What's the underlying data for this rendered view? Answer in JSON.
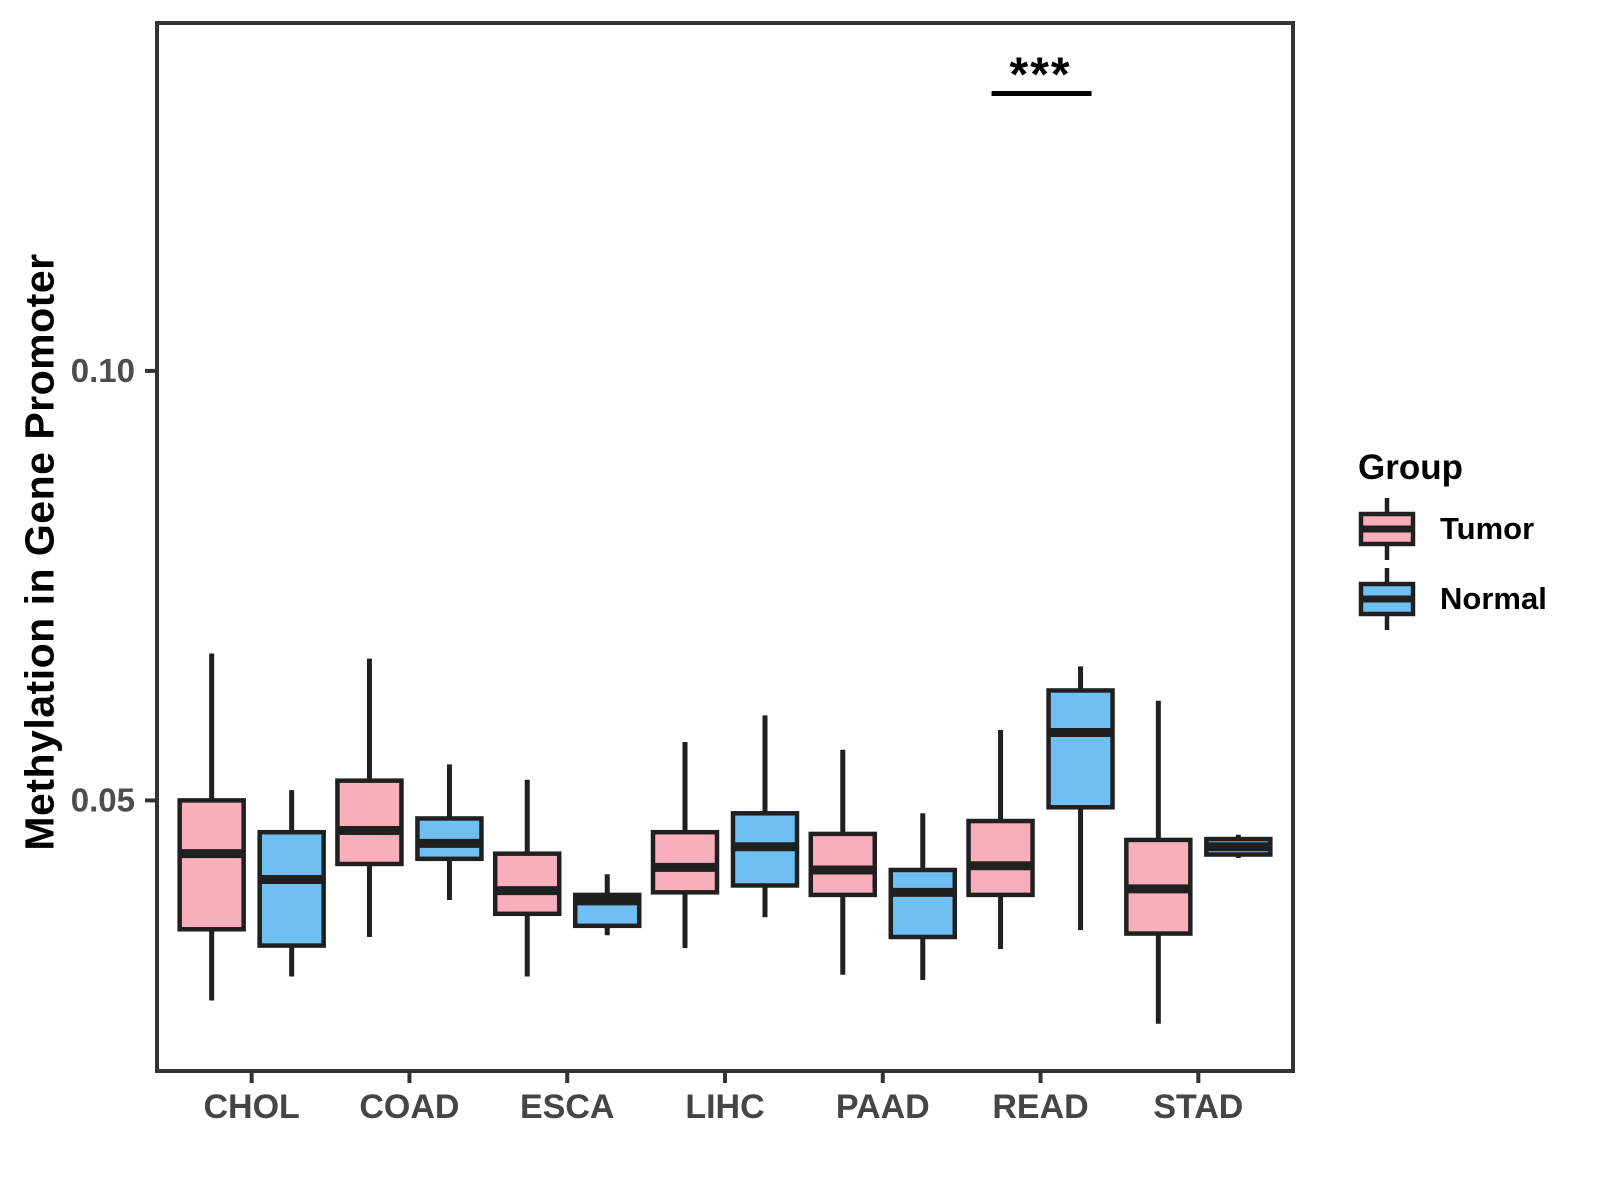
{
  "figure": {
    "y_axis_title": "Methylation in Gene Promoter",
    "legend": {
      "title": "Group",
      "entries": [
        {
          "label": "Tumor",
          "fill": "#F9AEBC"
        },
        {
          "label": "Normal",
          "fill": "#6FBFF2"
        }
      ]
    },
    "significance_label": "***"
  },
  "chart_data": {
    "type": "boxplot",
    "title": "",
    "xlabel": "",
    "ylabel": "Methylation in Gene Promoter",
    "categories": [
      "CHOL",
      "COAD",
      "ESCA",
      "LIHC",
      "PAAD",
      "READ",
      "STAD"
    ],
    "y_ticks": [
      {
        "value": 0.05,
        "label": "0.05"
      },
      {
        "value": 0.1,
        "label": "0.10"
      }
    ],
    "ylim": [
      0.0185,
      0.1405
    ],
    "grid": false,
    "legend_position": "right",
    "series": [
      {
        "name": "Tumor",
        "fill": "#F9AEBC",
        "boxes": [
          {
            "category": "CHOL",
            "low": 0.0267,
            "q1": 0.035,
            "median": 0.0438,
            "q3": 0.05,
            "high": 0.0671
          },
          {
            "category": "COAD",
            "low": 0.0341,
            "q1": 0.0426,
            "median": 0.0465,
            "q3": 0.0523,
            "high": 0.0665
          },
          {
            "category": "ESCA",
            "low": 0.0295,
            "q1": 0.0368,
            "median": 0.0395,
            "q3": 0.0438,
            "high": 0.0524
          },
          {
            "category": "LIHC",
            "low": 0.0328,
            "q1": 0.0393,
            "median": 0.0422,
            "q3": 0.0463,
            "high": 0.0568
          },
          {
            "category": "PAAD",
            "low": 0.0297,
            "q1": 0.039,
            "median": 0.0419,
            "q3": 0.0461,
            "high": 0.0559
          },
          {
            "category": "READ",
            "low": 0.0327,
            "q1": 0.039,
            "median": 0.0424,
            "q3": 0.0476,
            "high": 0.0582
          },
          {
            "category": "STAD",
            "low": 0.024,
            "q1": 0.0345,
            "median": 0.0397,
            "q3": 0.0454,
            "high": 0.0616
          }
        ]
      },
      {
        "name": "Normal",
        "fill": "#6FBFF2",
        "boxes": [
          {
            "category": "CHOL",
            "low": 0.0295,
            "q1": 0.0331,
            "median": 0.0408,
            "q3": 0.0463,
            "high": 0.0512
          },
          {
            "category": "COAD",
            "low": 0.0384,
            "q1": 0.0432,
            "median": 0.045,
            "q3": 0.0479,
            "high": 0.0542
          },
          {
            "category": "ESCA",
            "low": 0.0343,
            "q1": 0.0354,
            "median": 0.0383,
            "q3": 0.039,
            "high": 0.0414
          },
          {
            "category": "LIHC",
            "low": 0.0364,
            "q1": 0.0401,
            "median": 0.0446,
            "q3": 0.0485,
            "high": 0.0599
          },
          {
            "category": "PAAD",
            "low": 0.0291,
            "q1": 0.0341,
            "median": 0.0393,
            "q3": 0.0419,
            "high": 0.0485
          },
          {
            "category": "READ",
            "low": 0.0349,
            "q1": 0.0492,
            "median": 0.0579,
            "q3": 0.0628,
            "high": 0.0656
          },
          {
            "category": "STAD",
            "low": 0.0433,
            "q1": 0.0437,
            "median": 0.0446,
            "q3": 0.0455,
            "high": 0.046
          }
        ]
      }
    ],
    "annotations": [
      {
        "type": "significance",
        "label": "***",
        "category": "READ",
        "between": [
          "Tumor",
          "Normal"
        ],
        "bar_y": 0.1323,
        "text_y": 0.1352
      }
    ]
  }
}
